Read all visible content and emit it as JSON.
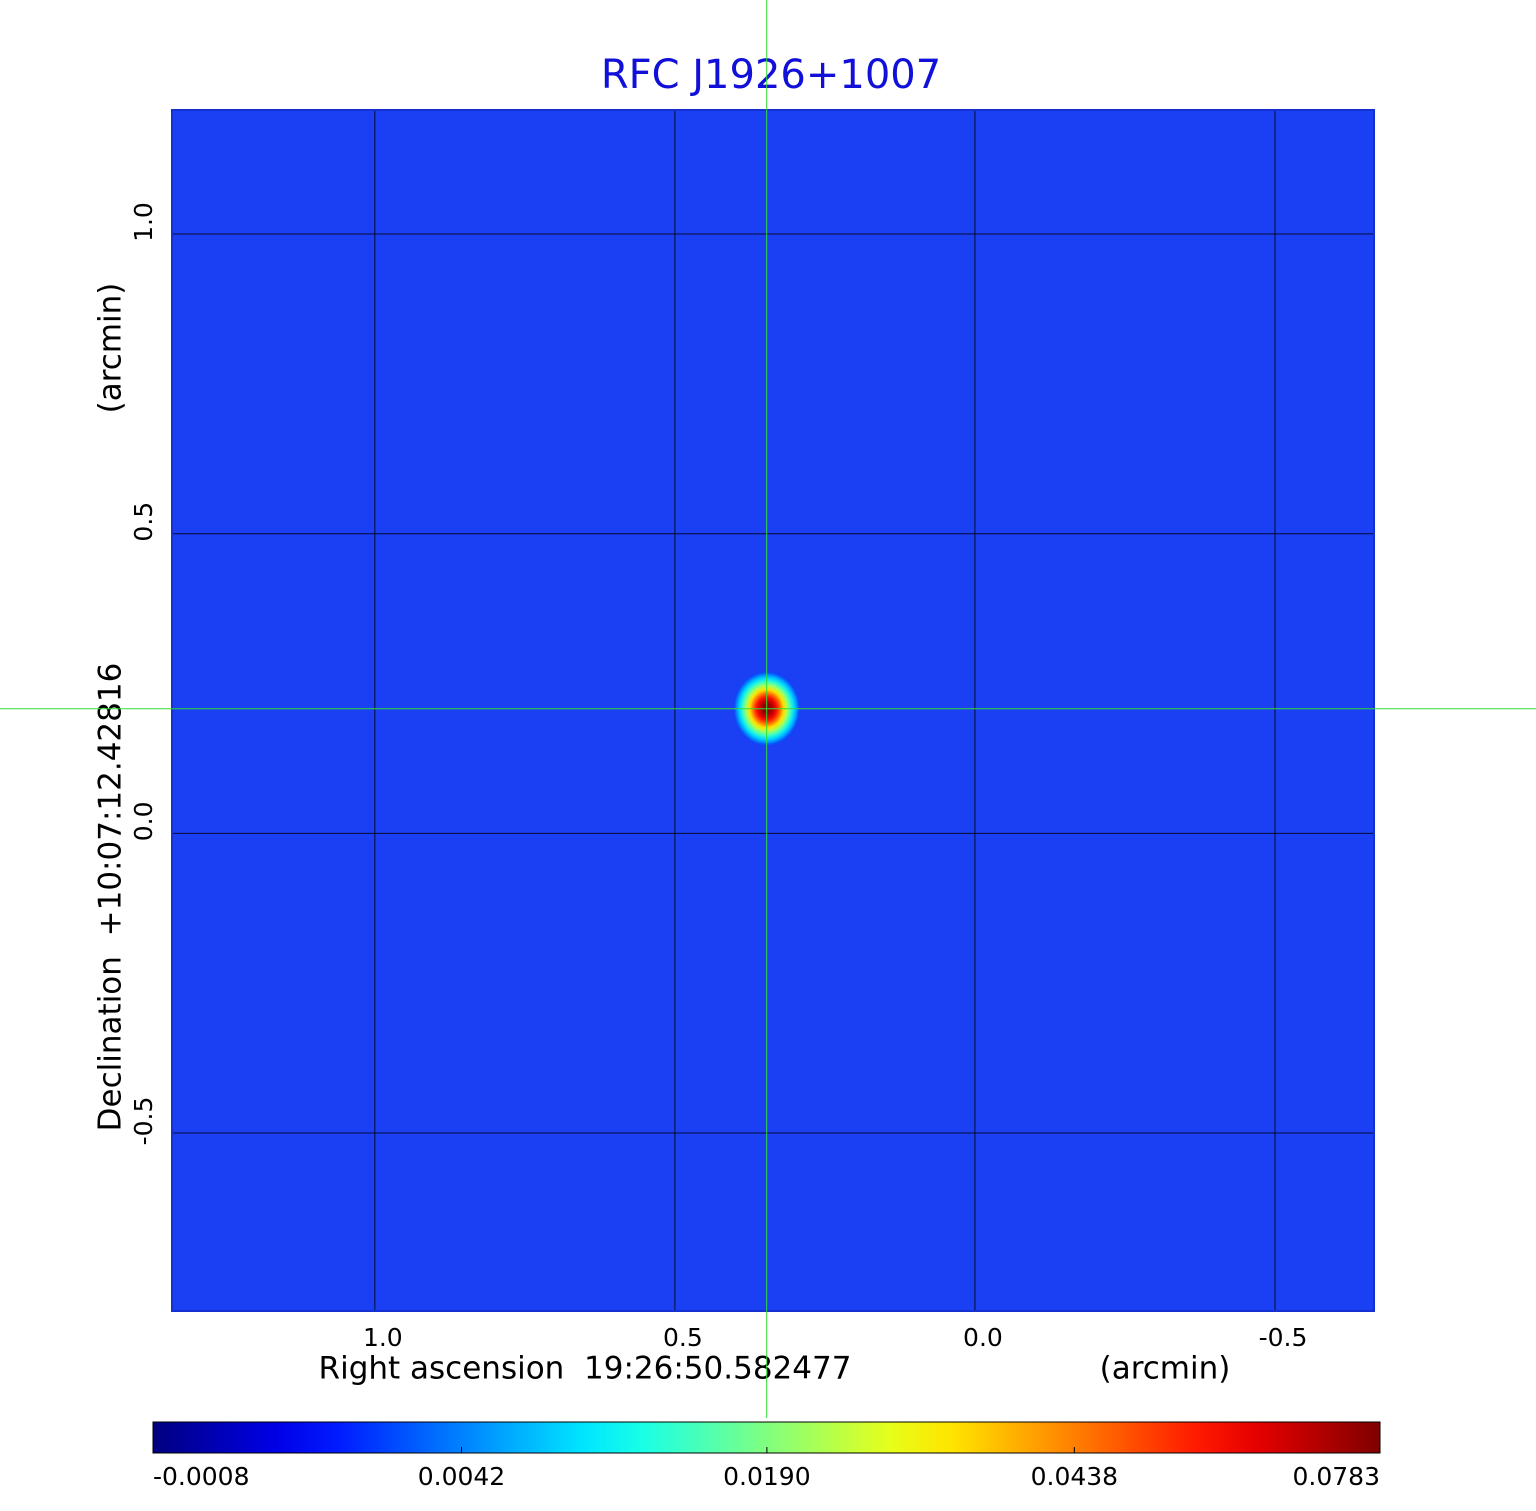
{
  "chart_data": {
    "type": "image",
    "title": "RFC J1926+1007",
    "xlabel": "Right ascension  19:26:50.582477",
    "xunit": "(arcmin)",
    "ylabel": "Declination  +10:07:12.42816",
    "yunit": "(arcmin)",
    "xlim": [
      1.338,
      -0.665
    ],
    "ylim": [
      -0.797,
      1.207
    ],
    "xticks": [
      {
        "value": 1,
        "label": "1.0"
      },
      {
        "value": 0.5,
        "label": "0.5"
      },
      {
        "value": 0,
        "label": "0.0"
      },
      {
        "value": -0.5,
        "label": "-0.5"
      }
    ],
    "yticks": [
      {
        "value": 1,
        "label": "1.0"
      },
      {
        "value": 0.5,
        "label": "0.5"
      },
      {
        "value": 0,
        "label": "0.0"
      },
      {
        "value": -0.5,
        "label": "-0.5"
      }
    ],
    "grid": true,
    "colormap": "jet",
    "color_scale": "sqrt",
    "background_color": "#1b3ff2",
    "crosshair_color": "#33dd33",
    "clim": [
      -0.0008,
      0.0783
    ],
    "cticks": [
      -0.0008,
      0.0042,
      {
        "value": 0.019,
        "label": "0.0190"
      },
      0.0438,
      0.0783
    ],
    "sources": [
      {
        "x": 0.347,
        "y": 0.208,
        "value": 0.0783
      }
    ]
  }
}
